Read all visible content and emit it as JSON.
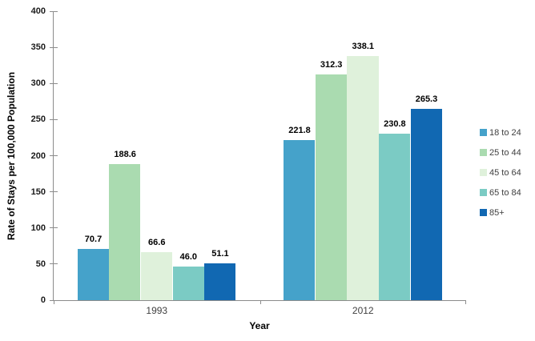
{
  "chart_data": {
    "type": "bar",
    "title": "",
    "xlabel": "Year",
    "ylabel": "Rate of Stays per 100,000 Population",
    "categories": [
      "1993",
      "2012"
    ],
    "series": [
      {
        "name": "18 to 24",
        "color": "#45A2CA",
        "values": [
          70.7,
          221.8
        ]
      },
      {
        "name": "25 to 44",
        "color": "#AADBB0",
        "values": [
          188.6,
          312.3
        ]
      },
      {
        "name": "45 to 64",
        "color": "#DFF1DB",
        "values": [
          66.6,
          338.1
        ]
      },
      {
        "name": "65 to 84",
        "color": "#7BCBC4",
        "values": [
          46.0,
          230.8
        ]
      },
      {
        "name": "85+",
        "color": "#1168B2",
        "values": [
          51.1,
          265.3
        ]
      }
    ],
    "ylim": [
      0,
      400
    ],
    "yticks": [
      0,
      50,
      100,
      150,
      200,
      250,
      300,
      350,
      400
    ],
    "grid": false,
    "legend_position": "right",
    "data_labels": true,
    "data_label_decimals": 1,
    "axis_color": "#8C8C8C"
  }
}
